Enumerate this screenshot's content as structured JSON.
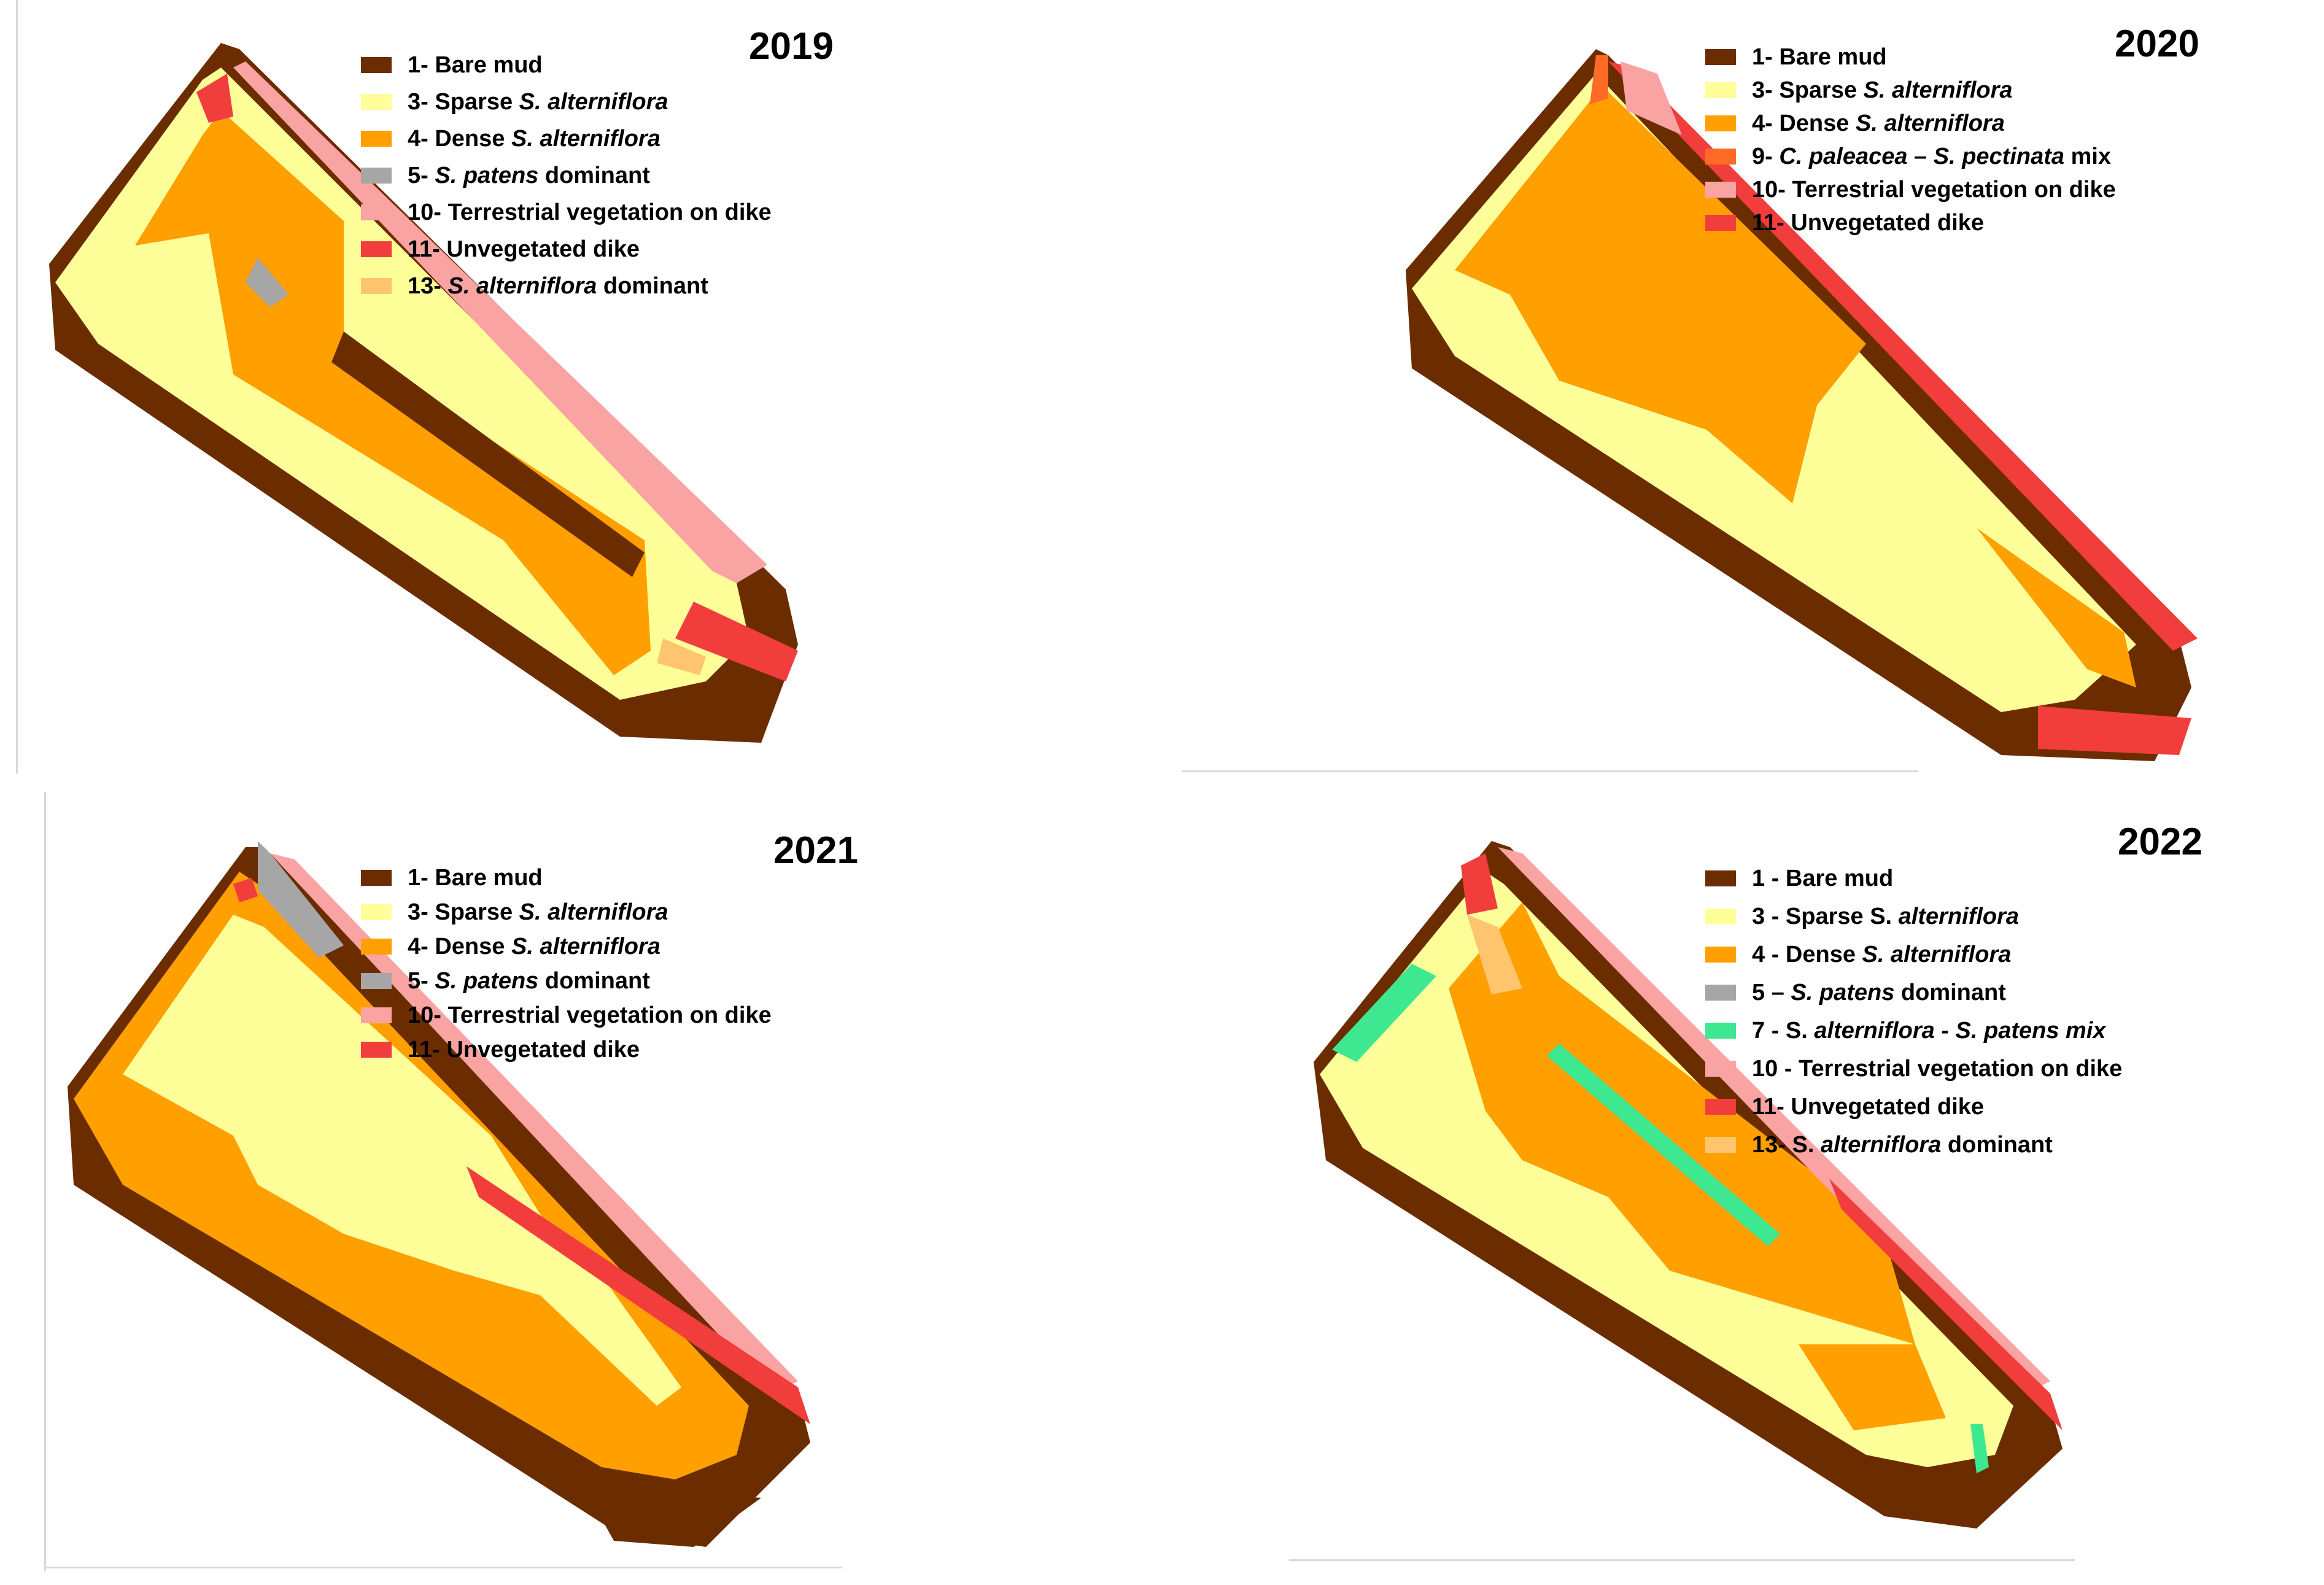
{
  "panels": [
    {
      "year": "2019",
      "legend": [
        {
          "code": "1-",
          "parts": [
            [
              "Bare mud",
              false
            ]
          ],
          "color": "#6b2d00"
        },
        {
          "code": "3-",
          "parts": [
            [
              "Sparse ",
              false
            ],
            [
              "S. alterniflora",
              true
            ]
          ],
          "color": "#ffff99"
        },
        {
          "code": "4-",
          "parts": [
            [
              "Dense ",
              false
            ],
            [
              "S. alterniflora",
              true
            ]
          ],
          "color": "#ff9f00"
        },
        {
          "code": "5-",
          "parts": [
            [
              "S. patens",
              true
            ],
            [
              " dominant",
              false
            ]
          ],
          "color": "#a6a6a6"
        },
        {
          "code": "10-",
          "parts": [
            [
              "Terrestrial vegetation on dike",
              false
            ]
          ],
          "color": "#f9a3a3"
        },
        {
          "code": "11-",
          "parts": [
            [
              "Unvegetated dike",
              false
            ]
          ],
          "color": "#f23d3d"
        },
        {
          "code": "13-",
          "parts": [
            [
              "S. alterniflora",
              true
            ],
            [
              " dominant",
              false
            ]
          ],
          "color": "#ffc56e"
        }
      ]
    },
    {
      "year": "2020",
      "legend": [
        {
          "code": "1-",
          "parts": [
            [
              "Bare mud",
              false
            ]
          ],
          "color": "#6b2d00"
        },
        {
          "code": "3-",
          "parts": [
            [
              "Sparse ",
              false
            ],
            [
              "S. alterniflora",
              true
            ]
          ],
          "color": "#ffff99"
        },
        {
          "code": "4-",
          "parts": [
            [
              "Dense ",
              false
            ],
            [
              "S. alterniflora",
              true
            ]
          ],
          "color": "#ff9f00"
        },
        {
          "code": "9-",
          "parts": [
            [
              "C. paleacea – S. pectinata",
              true
            ],
            [
              " mix",
              false
            ]
          ],
          "color": "#ff6a26"
        },
        {
          "code": "10-",
          "parts": [
            [
              "Terrestrial vegetation on dike",
              false
            ]
          ],
          "color": "#f9a3a3"
        },
        {
          "code": "11-",
          "parts": [
            [
              "Unvegetated dike",
              false
            ]
          ],
          "color": "#f23d3d"
        }
      ]
    },
    {
      "year": "2021",
      "legend": [
        {
          "code": "1-",
          "parts": [
            [
              "Bare mud",
              false
            ]
          ],
          "color": "#6b2d00"
        },
        {
          "code": "3-",
          "parts": [
            [
              "Sparse ",
              false
            ],
            [
              "S. alterniflora",
              true
            ]
          ],
          "color": "#ffff99"
        },
        {
          "code": "4-",
          "parts": [
            [
              "Dense ",
              false
            ],
            [
              "S. alterniflora",
              true
            ]
          ],
          "color": "#ff9f00"
        },
        {
          "code": "5-",
          "parts": [
            [
              "S. patens",
              true
            ],
            [
              " dominant",
              false
            ]
          ],
          "color": "#a6a6a6"
        },
        {
          "code": "10-",
          "parts": [
            [
              "Terrestrial vegetation on dike",
              false
            ]
          ],
          "color": "#f9a3a3"
        },
        {
          "code": "11-",
          "parts": [
            [
              "Unvegetated dike",
              false
            ]
          ],
          "color": "#f23d3d"
        }
      ]
    },
    {
      "year": "2022",
      "legend": [
        {
          "code": "1 -",
          "parts": [
            [
              "Bare mud",
              false
            ]
          ],
          "color": "#6b2d00"
        },
        {
          "code": "3 -",
          "parts": [
            [
              "Sparse S. ",
              false
            ],
            [
              "alterniflora",
              true
            ]
          ],
          "color": "#ffff99"
        },
        {
          "code": "4 -",
          "parts": [
            [
              "Dense ",
              false
            ],
            [
              "S. alterniflora",
              true
            ]
          ],
          "color": "#ff9f00"
        },
        {
          "code": "5 –",
          "parts": [
            [
              "S. patens",
              true
            ],
            [
              " dominant",
              false
            ]
          ],
          "color": "#a6a6a6"
        },
        {
          "code": "7 -",
          "parts": [
            [
              "S. ",
              false
            ],
            [
              "alterniflora - S. patens mix",
              true
            ]
          ],
          "color": "#3ee890"
        },
        {
          "code": "10 -",
          "parts": [
            [
              "Terrestrial vegetation on dike",
              false
            ]
          ],
          "color": "#f9a3a3"
        },
        {
          "code": "11-",
          "parts": [
            [
              "Unvegetated dike",
              false
            ]
          ],
          "color": "#f23d3d"
        },
        {
          "code": "13-",
          "parts": [
            [
              "S. ",
              false
            ],
            [
              "alterniflora",
              true
            ],
            [
              " dominant",
              false
            ]
          ],
          "color": "#ffc56e"
        }
      ]
    }
  ]
}
